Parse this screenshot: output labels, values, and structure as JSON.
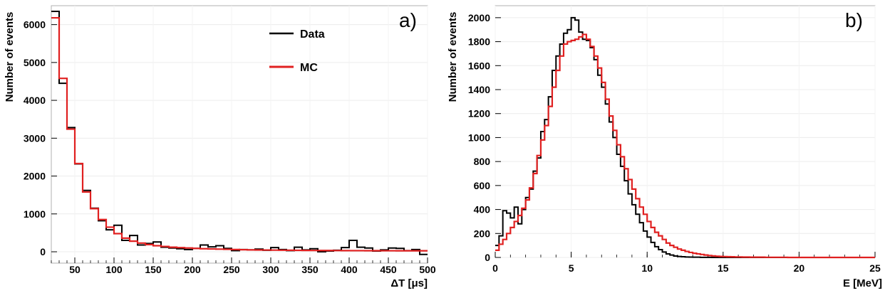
{
  "chart_data": [
    {
      "type": "histogram",
      "panel_label": "a)",
      "xlabel": "ΔT [μs]",
      "ylabel": "Number of events",
      "xlim": [
        20,
        500
      ],
      "ylim": [
        -300,
        6500
      ],
      "xticks": [
        50,
        100,
        150,
        200,
        250,
        300,
        350,
        400,
        450,
        500
      ],
      "yticks": [
        0,
        1000,
        2000,
        3000,
        4000,
        5000,
        6000
      ],
      "bin_edges_start": 20,
      "bin_width": 10,
      "legend": {
        "placement": "top-center",
        "entries": [
          "Data",
          "MC"
        ]
      },
      "series": [
        {
          "name": "Data",
          "color": "#000000",
          "values": [
            6350,
            4450,
            3280,
            2320,
            1620,
            1150,
            820,
            580,
            700,
            300,
            430,
            180,
            220,
            260,
            120,
            100,
            80,
            60,
            90,
            180,
            130,
            160,
            90,
            30,
            60,
            50,
            70,
            40,
            110,
            60,
            30,
            120,
            50,
            80,
            0,
            20,
            40,
            110,
            300,
            120,
            100,
            20,
            50,
            100,
            90,
            30,
            60,
            -70
          ]
        },
        {
          "name": "MC",
          "color": "#e02020",
          "values": [
            6180,
            4580,
            3240,
            2330,
            1580,
            1140,
            850,
            650,
            480,
            360,
            280,
            230,
            190,
            160,
            140,
            120,
            110,
            100,
            90,
            80,
            75,
            70,
            65,
            60,
            55,
            50,
            48,
            46,
            44,
            42,
            40,
            38,
            36,
            35,
            34,
            33,
            32,
            31,
            30,
            30,
            29,
            29,
            28,
            28,
            27,
            27,
            26,
            26
          ]
        }
      ]
    },
    {
      "type": "histogram",
      "panel_label": "b)",
      "xlabel": "E [MeV]",
      "ylabel": "Number of events",
      "xlim": [
        0,
        25
      ],
      "ylim": [
        0,
        2100
      ],
      "xticks": [
        0,
        5,
        10,
        15,
        20,
        25
      ],
      "yticks": [
        0,
        200,
        400,
        600,
        800,
        1000,
        1200,
        1400,
        1600,
        1800,
        2000
      ],
      "bin_edges_start": 0,
      "bin_width": 0.25,
      "series": [
        {
          "name": "Data",
          "color": "#000000",
          "values": [
            100,
            180,
            390,
            370,
            330,
            420,
            280,
            400,
            500,
            570,
            720,
            830,
            1050,
            1150,
            1340,
            1560,
            1680,
            1780,
            1870,
            1900,
            2000,
            1980,
            1880,
            1820,
            1810,
            1750,
            1650,
            1520,
            1420,
            1280,
            1130,
            1000,
            860,
            760,
            640,
            530,
            440,
            360,
            290,
            220,
            170,
            125,
            90,
            65,
            45,
            30,
            20,
            12,
            8,
            6,
            4,
            3,
            2,
            2,
            1,
            1,
            1,
            0,
            0,
            0,
            0,
            0,
            0,
            0,
            0,
            0,
            0,
            0,
            0,
            0,
            0,
            0,
            0,
            0,
            0,
            0,
            0,
            0,
            0,
            0,
            0,
            0,
            0,
            0,
            0,
            0,
            0,
            0,
            0,
            0,
            0,
            0,
            0,
            0,
            0,
            0,
            0,
            0,
            0,
            0
          ]
        },
        {
          "name": "MC",
          "color": "#e02020",
          "values": [
            60,
            110,
            150,
            200,
            250,
            300,
            350,
            410,
            480,
            580,
            700,
            850,
            980,
            1100,
            1260,
            1420,
            1560,
            1680,
            1780,
            1800,
            1810,
            1820,
            1840,
            1860,
            1820,
            1760,
            1680,
            1580,
            1460,
            1320,
            1180,
            1060,
            940,
            840,
            740,
            650,
            570,
            490,
            420,
            360,
            300,
            250,
            210,
            180,
            150,
            120,
            100,
            85,
            70,
            60,
            50,
            42,
            35,
            30,
            25,
            20,
            16,
            13,
            10,
            8,
            7,
            6,
            5,
            4,
            4,
            3,
            3,
            2,
            2,
            2,
            2,
            1,
            1,
            1,
            1,
            1,
            1,
            0,
            0,
            0,
            0,
            0,
            0,
            0,
            0,
            0,
            0,
            0,
            0,
            0,
            0,
            0,
            0,
            0,
            0,
            0,
            0,
            0,
            0,
            0
          ]
        }
      ]
    }
  ]
}
